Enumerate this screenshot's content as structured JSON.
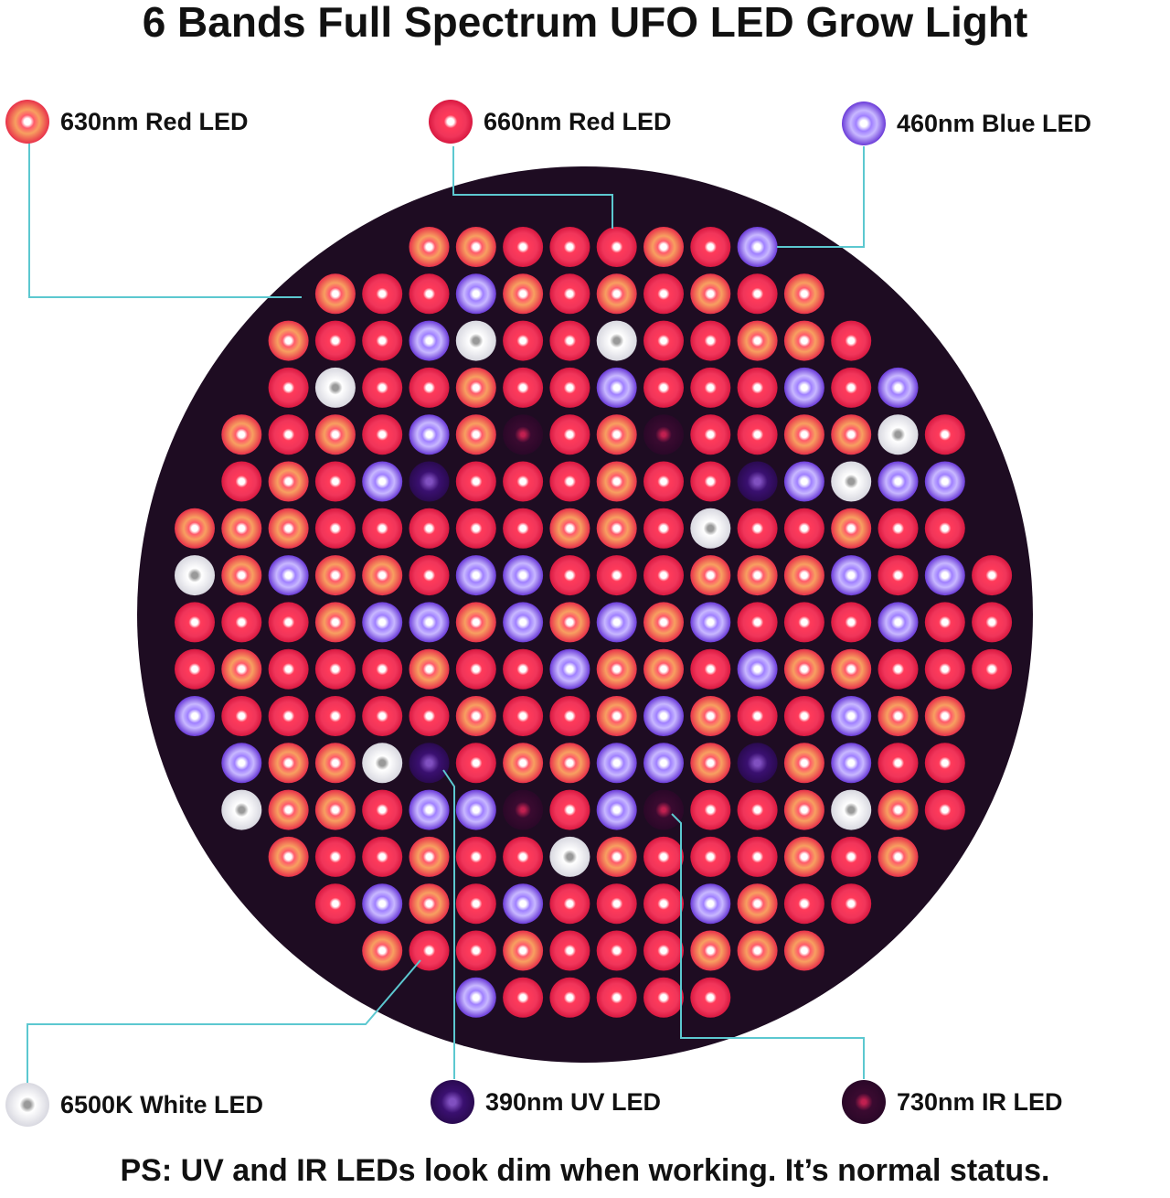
{
  "title": "6 Bands Full Spectrum UFO LED Grow Light",
  "leds": [
    {
      "label": "630nm Red LED"
    },
    {
      "label": "660nm Red LED"
    },
    {
      "label": "460nm Blue LED"
    },
    {
      "label": "6500K White LED"
    },
    {
      "label": "390nm UV LED"
    },
    {
      "label": "730nm IR LED"
    }
  ],
  "footer": "PS: UV and IR LEDs look dim when working. It’s normal status."
}
